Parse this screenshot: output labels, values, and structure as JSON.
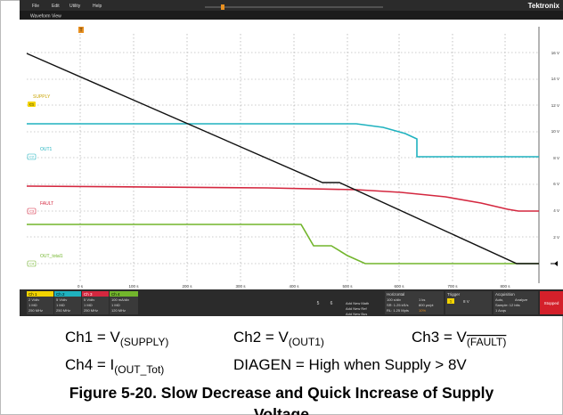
{
  "menu": {
    "items": [
      "File",
      "Edit",
      "Utility",
      "Help"
    ],
    "brand": "Tektronix"
  },
  "view": {
    "title": "Waveform View",
    "trigger_marker": "T"
  },
  "channels": [
    {
      "name": "SUPPLY",
      "tag": "C1"
    },
    {
      "name": "OUT1",
      "tag": "C2"
    },
    {
      "name": "FAULT",
      "tag": "C3"
    },
    {
      "name": "OUT_total1",
      "tag": "C4"
    }
  ],
  "y_axis": [
    "16 V",
    "14 V",
    "12 V",
    "10 V",
    "8 V",
    "6 V",
    "4 V",
    "2 V"
  ],
  "x_axis": [
    "0 s",
    "100 s",
    "200 s",
    "300 s",
    "400 s",
    "500 s",
    "600 s",
    "700 s",
    "800 s"
  ],
  "status": {
    "ch1": {
      "title": "Ch 1",
      "lines": [
        "2 V/div",
        "1 MΩ",
        "250 MHz"
      ]
    },
    "ch2": {
      "title": "Ch 2",
      "lines": [
        "5 V/div",
        "1 MΩ",
        "250 MHz"
      ]
    },
    "ch3": {
      "title": "Ch 3",
      "lines": [
        "5 V/div",
        "1 MΩ",
        "250 MHz"
      ]
    },
    "ch4": {
      "title": "Ch 4",
      "lines": [
        "100 mA/div",
        "1 MΩ",
        "120 MHz"
      ]
    },
    "buttons": [
      "5",
      "6"
    ],
    "add": [
      "Add New Math",
      "Add New Ref",
      "Add New Bus"
    ],
    "horizontal": {
      "title": "Horizontal",
      "lines": [
        "100 s/div",
        "1 ks",
        "SR: 1.25 kS/s",
        "800 μs/pt",
        "RL: 1.25 Mpts",
        "10%"
      ]
    },
    "trigger": {
      "title": "Trigger",
      "tag": "1",
      "level": "8 V"
    },
    "acquisition": {
      "title": "Acquisition",
      "lines": [
        "Auto,",
        "Analyze",
        "Sample: 12 bits",
        "1 Acqs"
      ]
    },
    "state": "Stopped"
  },
  "caption": {
    "row1": [
      {
        "main": "Ch1 = V",
        "sub": "(SUPPLY)"
      },
      {
        "main": "Ch2 = V",
        "sub": "(OUT1)"
      },
      {
        "main": "Ch3 = V",
        "sub": "(FAULT)"
      }
    ],
    "row2": [
      {
        "main": "Ch4 = I",
        "sub": "(OUT_Tot)"
      },
      {
        "main": "DIAGEN = High when Supply > 8V"
      }
    ],
    "title": [
      "Figure 5-20. Slow Decrease and Quick Increase of Supply",
      "Voltage"
    ]
  }
}
